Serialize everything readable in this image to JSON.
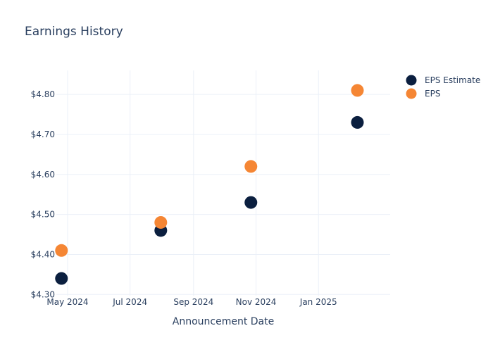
{
  "chart_data": {
    "type": "scatter",
    "title": "Earnings History",
    "xlabel": "Announcement Date",
    "ylabel": "",
    "x_ticks": [
      "May 2024",
      "Jul 2024",
      "Sep 2024",
      "Nov 2024",
      "Jan 2025"
    ],
    "x_tick_dates": [
      "2024-05-01",
      "2024-07-01",
      "2024-09-01",
      "2024-11-01",
      "2025-01-01"
    ],
    "x_range": [
      "2024-04-20",
      "2025-03-12"
    ],
    "y_ticks": [
      "$4.30",
      "$4.40",
      "$4.50",
      "$4.60",
      "$4.70",
      "$4.80"
    ],
    "y_tick_values": [
      4.3,
      4.4,
      4.5,
      4.6,
      4.7,
      4.8
    ],
    "ylim": [
      4.297,
      4.86
    ],
    "grid": true,
    "legend_position": "top-right",
    "x": [
      "2024-04-25",
      "2024-07-31",
      "2024-10-27",
      "2025-02-08"
    ],
    "series": [
      {
        "name": "EPS Estimate",
        "color": "#0b1f3f",
        "values": [
          4.34,
          4.46,
          4.53,
          4.73
        ]
      },
      {
        "name": "EPS",
        "color": "#f58634",
        "values": [
          4.41,
          4.48,
          4.62,
          4.81
        ]
      }
    ]
  }
}
